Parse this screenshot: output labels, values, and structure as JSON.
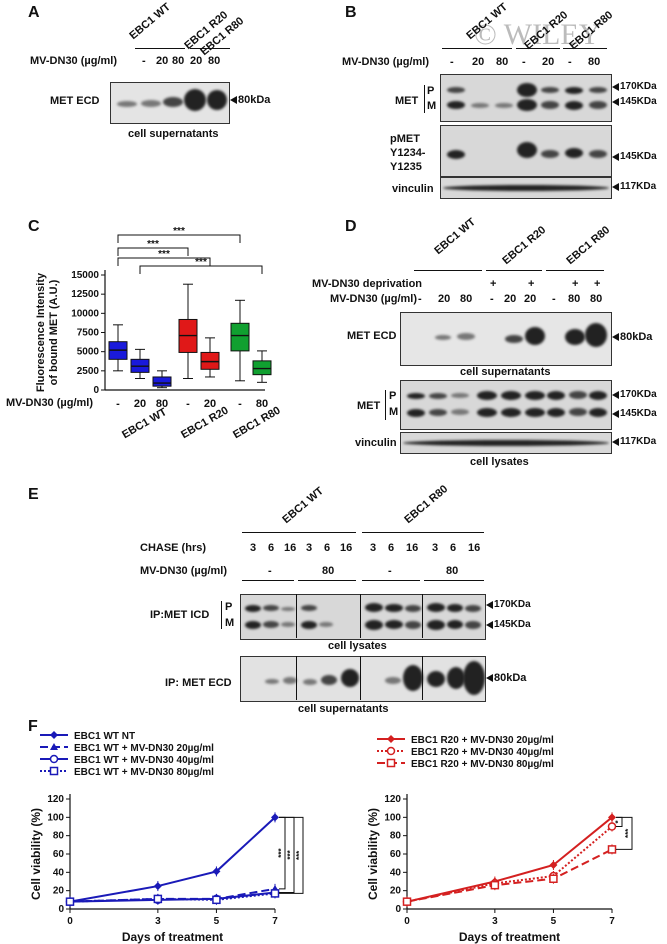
{
  "watermark": "© WILEY",
  "panelA": {
    "letter": "A",
    "header_wt": "EBC1 WT",
    "header_r20": "EBC1 R20",
    "header_r80": "EBC1 R80",
    "dose_label": "MV-DN30 (µg/ml)",
    "doses": [
      "-",
      "20",
      "80",
      "20",
      "80"
    ],
    "row_label": "MET ECD",
    "mw": "80kDa",
    "caption": "cell supernatants"
  },
  "panelB": {
    "letter": "B",
    "header_wt": "EBC1 WT",
    "header_r20": "EBC1 R20",
    "header_r80": "EBC1 R80",
    "dose_label": "MV-DN30 (µg/ml)",
    "doses": [
      "-",
      "20",
      "80",
      "-",
      "20",
      "-",
      "80"
    ],
    "met_label": "MET",
    "p": "P",
    "m": "M",
    "pmet_label": "pMET Y1234- Y1235",
    "vinculin": "vinculin",
    "mw_170": "170KDa",
    "mw_145": "145KDa",
    "mw_145b": "145KDa",
    "mw_117": "117KDa"
  },
  "panelC": {
    "letter": "C",
    "ylabel": "Fluorescence Intensity of bound MET (A.U.)",
    "dose_label": "MV-DN30 (µg/ml)",
    "doses": [
      "-",
      "20",
      "80",
      "-",
      "20",
      "-",
      "80"
    ],
    "groups": [
      "EBC1 WT",
      "EBC1 R20",
      "EBC1 R80"
    ],
    "sig": [
      "***",
      "***",
      "***",
      "***"
    ]
  },
  "panelD": {
    "letter": "D",
    "header_wt": "EBC1 WT",
    "header_r20": "EBC1 R20",
    "header_r80": "EBC1 R80",
    "deprivation_label": "MV-DN30 deprivation",
    "dose_label": "MV-DN30 (µg/ml)",
    "deprivation": [
      "-",
      "-",
      "-",
      "+",
      "-",
      "+",
      "+",
      "-",
      "+"
    ],
    "doses": [
      "-",
      "20",
      "80",
      "-",
      "20",
      "20",
      "-",
      "80",
      "80"
    ],
    "met_ecd": "MET ECD",
    "mw_80": "80kDa",
    "sup": "cell supernatants",
    "met": "MET",
    "p": "P",
    "m": "M",
    "vinculin": "vinculin",
    "mw_170": "170KDa",
    "mw_145": "145KDa",
    "mw_117": "117KDa",
    "lys": "cell lysates"
  },
  "panelE": {
    "letter": "E",
    "header_wt": "EBC1 WT",
    "header_r80": "EBC1 R80",
    "chase_label": "CHASE (hrs)",
    "chase": [
      "3",
      "6",
      "16",
      "3",
      "6",
      "16",
      "3",
      "6",
      "16",
      "3",
      "6",
      "16"
    ],
    "dose_label": "MV-DN30 (µg/ml)",
    "doses": [
      "-",
      "80",
      "-",
      "80"
    ],
    "ip_icd": "IP:MET ICD",
    "p": "P",
    "m": "M",
    "mw_170": "170KDa",
    "mw_145": "145KDa",
    "lys": "cell lysates",
    "ip_ecd": "IP: MET ECD",
    "mw_80": "80kDa",
    "sup": "cell supernatants"
  },
  "panelF": {
    "letter": "F"
  },
  "chart_data": [
    {
      "type": "box",
      "panel": "C",
      "ylabel": "Fluorescence Intensity of bound MET (A.U.)",
      "ylim": [
        0,
        15000
      ],
      "yticks": [
        0,
        2500,
        5000,
        7500,
        10000,
        12500,
        15000
      ],
      "categories": [
        "EBC1 WT -",
        "EBC1 WT 20",
        "EBC1 WT 80",
        "EBC1 R20 -",
        "EBC1 R20 20",
        "EBC1 R80 -",
        "EBC1 R80 80"
      ],
      "colors": [
        "#1a1adb",
        "#1a1adb",
        "#1a1adb",
        "#e01818",
        "#e01818",
        "#10a030",
        "#10a030"
      ],
      "boxes": [
        {
          "min": 2500,
          "q1": 4000,
          "median": 5200,
          "q3": 6300,
          "max": 8500
        },
        {
          "min": 1500,
          "q1": 2300,
          "median": 3100,
          "q3": 4000,
          "max": 5300
        },
        {
          "min": 300,
          "q1": 500,
          "median": 900,
          "q3": 1700,
          "max": 2500
        },
        {
          "min": 1500,
          "q1": 4900,
          "median": 7100,
          "q3": 9200,
          "max": 13800
        },
        {
          "min": 1700,
          "q1": 2700,
          "median": 3700,
          "q3": 4900,
          "max": 6800
        },
        {
          "min": 1200,
          "q1": 5100,
          "median": 7100,
          "q3": 8700,
          "max": 11700
        },
        {
          "min": 1000,
          "q1": 2000,
          "median": 2800,
          "q3": 3800,
          "max": 5100
        }
      ]
    },
    {
      "type": "line",
      "panel": "F-left",
      "xlabel": "Days of treatment",
      "ylabel": "Cell viability (%)",
      "x": [
        0,
        3,
        5,
        7
      ],
      "ylim": [
        0,
        120
      ],
      "yticks": [
        0,
        20,
        40,
        60,
        80,
        100,
        120
      ],
      "xticks": [
        0,
        3,
        5,
        7
      ],
      "series": [
        {
          "name": "EBC1 WT NT",
          "values": [
            8,
            25,
            41,
            100
          ],
          "color": "#1a1ab8",
          "dash": "",
          "marker": "diamond"
        },
        {
          "name": "EBC1 WT + MV-DN30 20µg/ml",
          "values": [
            8,
            11,
            11,
            22
          ],
          "color": "#1a1ab8",
          "dash": "8,4",
          "marker": "triangle"
        },
        {
          "name": "EBC1 WT + MV-DN30 40µg/ml",
          "values": [
            8,
            10,
            11,
            18
          ],
          "color": "#1a1ab8",
          "dash": "",
          "marker": "circle"
        },
        {
          "name": "EBC1 WT + MV-DN30 80µg/ml",
          "values": [
            8,
            11,
            10,
            17
          ],
          "color": "#1a1ab8",
          "dash": "2,2",
          "marker": "square"
        }
      ],
      "sig": [
        "***",
        "***",
        "***"
      ]
    },
    {
      "type": "line",
      "panel": "F-right",
      "xlabel": "Days of treatment",
      "ylabel": "Cell viability (%)",
      "x": [
        0,
        3,
        5,
        7
      ],
      "ylim": [
        0,
        120
      ],
      "yticks": [
        0,
        20,
        40,
        60,
        80,
        100,
        120
      ],
      "xticks": [
        0,
        3,
        5,
        7
      ],
      "series": [
        {
          "name": "EBC1 R20 + MV-DN30 20µg/ml",
          "values": [
            8,
            30,
            48,
            100
          ],
          "color": "#d42020",
          "dash": "",
          "marker": "diamond"
        },
        {
          "name": "EBC1 R20 + MV-DN30 40µg/ml",
          "values": [
            8,
            28,
            36,
            90
          ],
          "color": "#d42020",
          "dash": "2,2",
          "marker": "circle"
        },
        {
          "name": "EBC1 R20 + MV-DN30 80µg/ml",
          "values": [
            8,
            26,
            33,
            65
          ],
          "color": "#d42020",
          "dash": "8,4",
          "marker": "square"
        }
      ],
      "sig": [
        "*",
        "***"
      ]
    }
  ]
}
